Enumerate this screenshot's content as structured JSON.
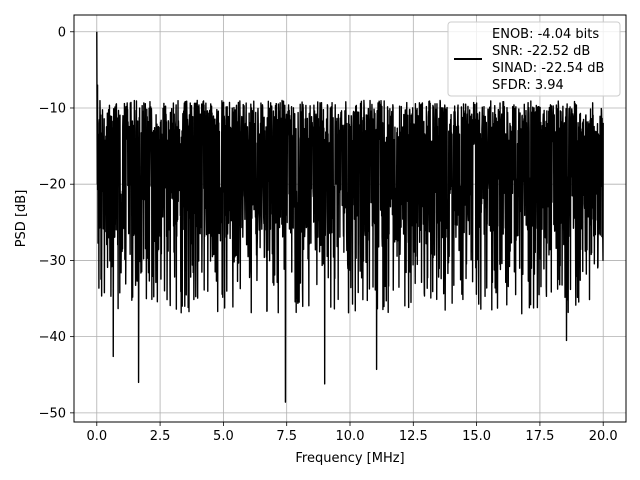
{
  "chart_data": {
    "type": "line",
    "title": "",
    "xlabel": "Frequency [MHz]",
    "ylabel": "PSD [dB]",
    "xlim": [
      -0.9,
      20.9
    ],
    "ylim": [
      -51.2,
      2.2
    ],
    "xticks": [
      0.0,
      2.5,
      5.0,
      7.5,
      10.0,
      12.5,
      15.0,
      17.5,
      20.0
    ],
    "xtick_labels": [
      "0.0",
      "2.5",
      "5.0",
      "7.5",
      "10.0",
      "12.5",
      "15.0",
      "17.5",
      "20.0"
    ],
    "yticks": [
      0,
      -10,
      -20,
      -30,
      -40,
      -50
    ],
    "ytick_labels": [
      "0",
      "−10",
      "−20",
      "−30",
      "−40",
      "−50"
    ],
    "grid": true,
    "legend_position": "top-right",
    "series": [
      {
        "name": "ENOB: -4.04 bits\nSNR: -22.52 dB\nSINAD: -22.54 dB\nSFDR: 3.94",
        "color": "#000000",
        "description_points": {
          "x_range": [
            0.0,
            20.0
          ],
          "peak": {
            "x": 0.0,
            "y": 0.0
          },
          "typical_band": [
            -27,
            -9
          ],
          "deep_nulls": [
            {
              "x": 0.65,
              "y": -42.6
            },
            {
              "x": 1.65,
              "y": -46.0
            },
            {
              "x": 7.45,
              "y": -48.6
            },
            {
              "x": 9.0,
              "y": -46.2
            },
            {
              "x": 11.05,
              "y": -44.3
            },
            {
              "x": 18.55,
              "y": -40.5
            }
          ]
        }
      }
    ]
  },
  "legend": {
    "lines": [
      "ENOB: -4.04 bits",
      "SNR: -22.52 dB",
      "SINAD: -22.54 dB",
      "SFDR: 3.94"
    ]
  }
}
